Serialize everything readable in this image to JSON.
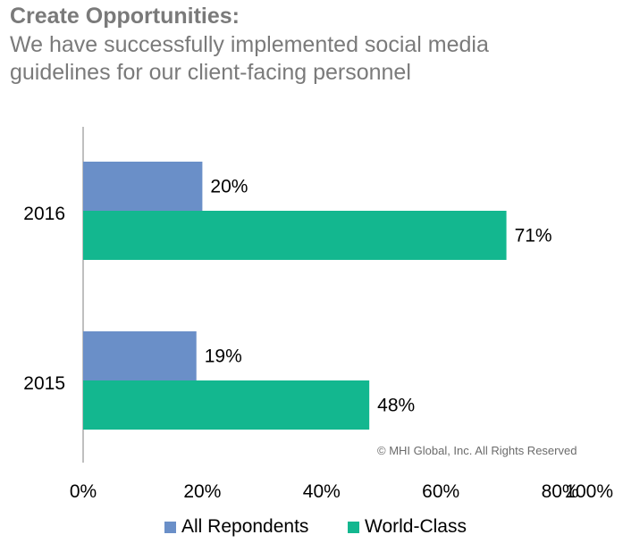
{
  "title": "Create Opportunities:",
  "subtitle": "We have successfully implemented social media guidelines for our client-facing personnel",
  "copyright": "© MHI Global, Inc. All Rights Reserved",
  "chart_data": {
    "type": "bar",
    "orientation": "horizontal",
    "categories": [
      "2016",
      "2015"
    ],
    "series": [
      {
        "name": "All Repondents",
        "values": [
          20,
          19
        ],
        "labels": [
          "20%",
          "19%"
        ],
        "color": "#6a8fc8"
      },
      {
        "name": "World-Class",
        "values": [
          71,
          48
        ],
        "labels": [
          "71%",
          "48%"
        ],
        "color": "#13b78f"
      }
    ],
    "xlim": [
      0,
      100
    ],
    "xticks": [
      "0%",
      "20%",
      "40%",
      "60%",
      "80%",
      "100%"
    ],
    "grid": false,
    "legend": "bottom"
  }
}
